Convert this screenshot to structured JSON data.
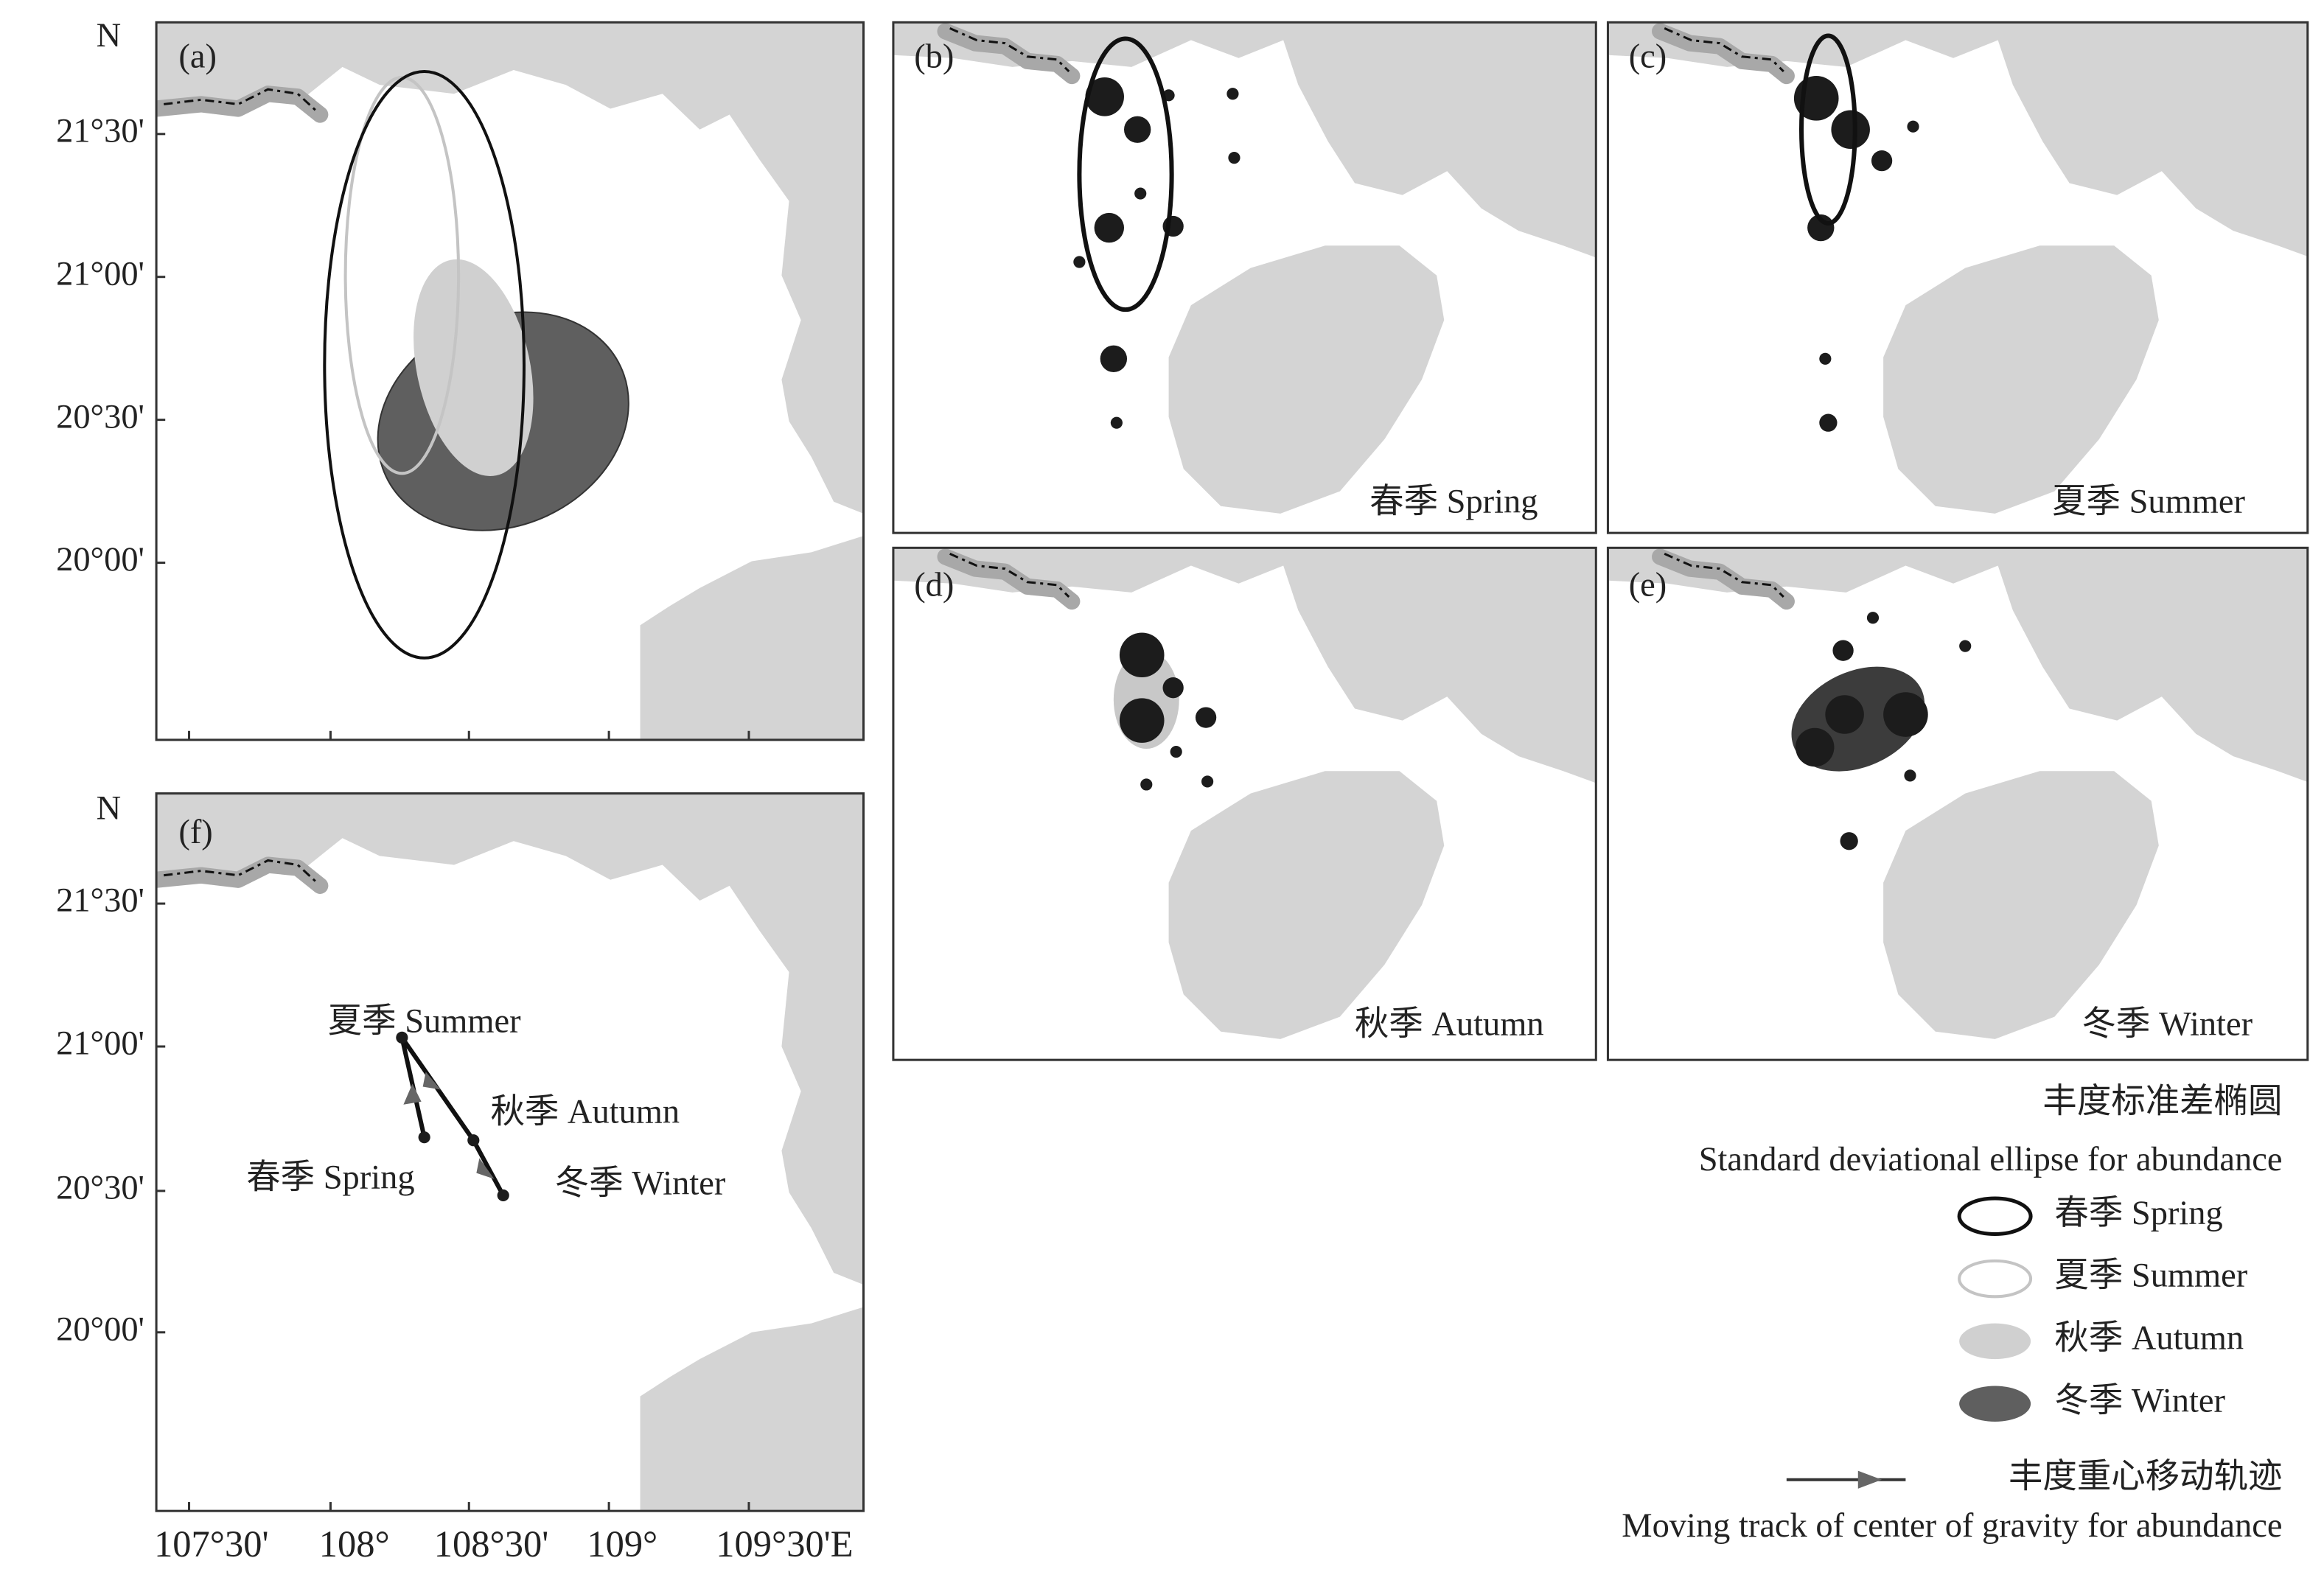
{
  "panels": {
    "a": "(a)",
    "b": "(b)",
    "c": "(c)",
    "d": "(d)",
    "e": "(e)",
    "f": "(f)"
  },
  "axes": {
    "north": "N",
    "y_ticks": [
      "21°30'",
      "21°00'",
      "20°30'",
      "20°00'"
    ],
    "x_ticks": [
      "107°30'",
      "108°",
      "108°30'",
      "109°",
      "109°30'E"
    ]
  },
  "season_labels": {
    "spring": "春季 Spring",
    "summer": "夏季 Summer",
    "autumn": "秋季 Autumn",
    "winter": "冬季 Winter"
  },
  "legend": {
    "ellipse_title_cn": "丰度标准差椭圆",
    "ellipse_title_en": "Standard deviational ellipse for abundance",
    "track_title_cn": "丰度重心移动轨迹",
    "track_title_en": "Moving track of center of gravity for abundance"
  }
}
